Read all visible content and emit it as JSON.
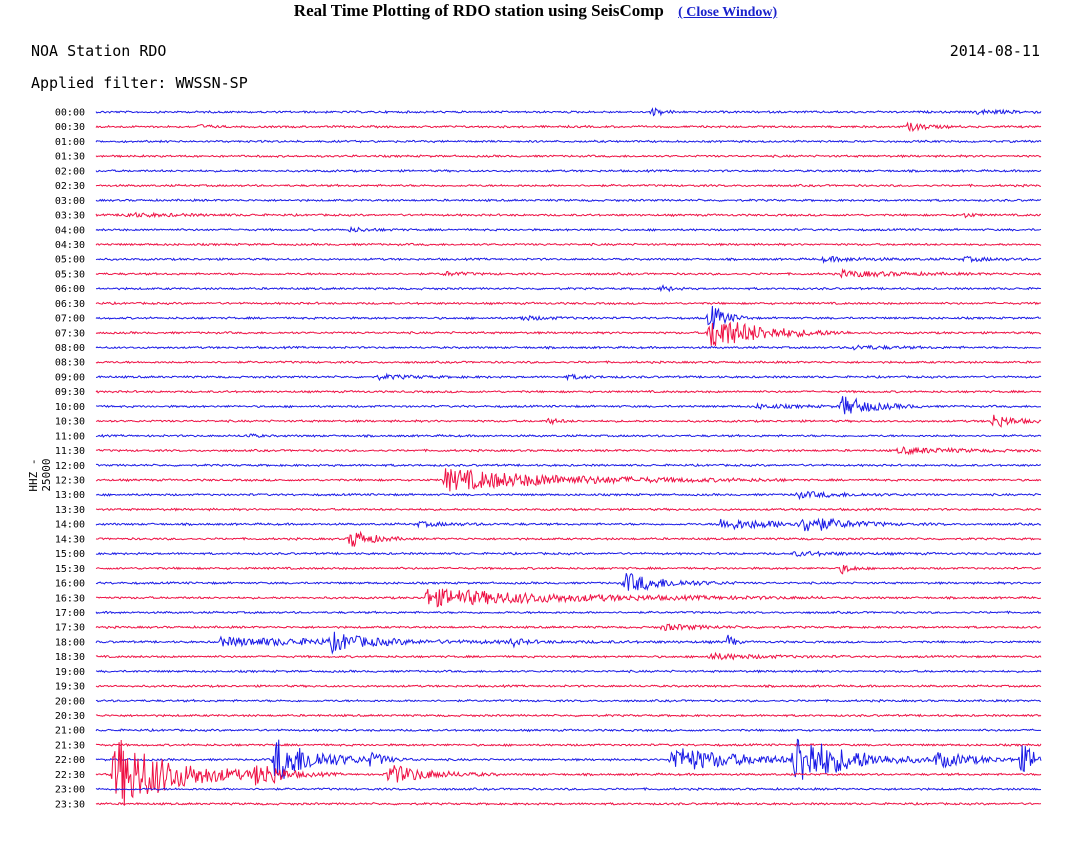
{
  "header": {
    "title": "Real Time Plotting of RDO station using SeisComp",
    "close_label": "( Close Window)"
  },
  "plot": {
    "station_label": "NOA Station RDO",
    "date": "2014-08-11",
    "filter_label": "Applied filter: WWSSN-SP",
    "channel_label": "HHZ - 25000",
    "colors": {
      "trace_a": "#1a1ae6",
      "trace_b": "#ee1144"
    },
    "rows": [
      {
        "time": "00:00",
        "events": [
          {
            "t": 0.59,
            "a": 4,
            "d": 0.01
          },
          {
            "t": 0.93,
            "a": 2,
            "d": 0.04
          }
        ]
      },
      {
        "time": "00:30",
        "events": [
          {
            "t": 0.11,
            "a": 2,
            "d": 0.01
          },
          {
            "t": 0.86,
            "a": 4,
            "d": 0.02
          }
        ]
      },
      {
        "time": "01:00",
        "events": []
      },
      {
        "time": "01:30",
        "events": []
      },
      {
        "time": "02:00",
        "events": []
      },
      {
        "time": "02:30",
        "events": []
      },
      {
        "time": "03:00",
        "events": []
      },
      {
        "time": "03:30",
        "events": [
          {
            "t": 0.03,
            "a": 2,
            "d": 0.05
          },
          {
            "t": 0.92,
            "a": 2,
            "d": 0.01
          }
        ]
      },
      {
        "time": "04:00",
        "events": [
          {
            "t": 0.27,
            "a": 2,
            "d": 0.02
          }
        ]
      },
      {
        "time": "04:30",
        "events": []
      },
      {
        "time": "05:00",
        "events": [
          {
            "t": 0.77,
            "a": 2,
            "d": 0.05
          },
          {
            "t": 0.92,
            "a": 2,
            "d": 0.03
          }
        ]
      },
      {
        "time": "05:30",
        "events": [
          {
            "t": 0.37,
            "a": 2,
            "d": 0.02
          },
          {
            "t": 0.79,
            "a": 3,
            "d": 0.06
          }
        ]
      },
      {
        "time": "06:00",
        "events": [
          {
            "t": 0.6,
            "a": 3,
            "d": 0.01
          }
        ]
      },
      {
        "time": "06:30",
        "events": []
      },
      {
        "time": "07:00",
        "events": [
          {
            "t": 0.65,
            "a": 14,
            "d": 0.015
          },
          {
            "t": 0.45,
            "a": 2,
            "d": 0.03
          }
        ]
      },
      {
        "time": "07:30",
        "events": [
          {
            "t": 0.65,
            "a": 18,
            "d": 0.05
          }
        ]
      },
      {
        "time": "08:00",
        "events": [
          {
            "t": 0.8,
            "a": 2,
            "d": 0.04
          }
        ]
      },
      {
        "time": "08:30",
        "events": []
      },
      {
        "time": "09:00",
        "events": [
          {
            "t": 0.3,
            "a": 2,
            "d": 0.04
          },
          {
            "t": 0.5,
            "a": 2,
            "d": 0.02
          }
        ]
      },
      {
        "time": "09:30",
        "events": []
      },
      {
        "time": "10:00",
        "events": [
          {
            "t": 0.79,
            "a": 10,
            "d": 0.03
          },
          {
            "t": 0.7,
            "a": 2,
            "d": 0.04
          }
        ]
      },
      {
        "time": "10:30",
        "events": [
          {
            "t": 0.48,
            "a": 3,
            "d": 0.01
          },
          {
            "t": 0.95,
            "a": 7,
            "d": 0.02
          }
        ]
      },
      {
        "time": "11:00",
        "events": [
          {
            "t": 0.16,
            "a": 2,
            "d": 0.01
          }
        ]
      },
      {
        "time": "11:30",
        "events": [
          {
            "t": 0.85,
            "a": 3,
            "d": 0.06
          }
        ]
      },
      {
        "time": "12:00",
        "events": []
      },
      {
        "time": "12:30",
        "events": [
          {
            "t": 0.37,
            "a": 11,
            "d": 0.12
          }
        ]
      },
      {
        "time": "13:00",
        "events": [
          {
            "t": 0.74,
            "a": 3,
            "d": 0.05
          }
        ]
      },
      {
        "time": "13:30",
        "events": []
      },
      {
        "time": "14:00",
        "events": [
          {
            "t": 0.66,
            "a": 5,
            "d": 0.08
          },
          {
            "t": 0.75,
            "a": 8,
            "d": 0.03
          },
          {
            "t": 0.34,
            "a": 2,
            "d": 0.04
          }
        ]
      },
      {
        "time": "14:30",
        "events": [
          {
            "t": 0.27,
            "a": 10,
            "d": 0.02
          }
        ]
      },
      {
        "time": "15:00",
        "events": [
          {
            "t": 0.74,
            "a": 2,
            "d": 0.05
          }
        ]
      },
      {
        "time": "15:30",
        "events": [
          {
            "t": 0.79,
            "a": 5,
            "d": 0.01
          }
        ]
      },
      {
        "time": "16:00",
        "events": [
          {
            "t": 0.56,
            "a": 10,
            "d": 0.04
          }
        ]
      },
      {
        "time": "16:30",
        "events": [
          {
            "t": 0.35,
            "a": 9,
            "d": 0.14
          }
        ]
      },
      {
        "time": "17:00",
        "events": []
      },
      {
        "time": "17:30",
        "events": [
          {
            "t": 0.6,
            "a": 3,
            "d": 0.04
          }
        ]
      },
      {
        "time": "18:00",
        "events": [
          {
            "t": 0.13,
            "a": 4,
            "d": 0.18
          },
          {
            "t": 0.25,
            "a": 8,
            "d": 0.03
          },
          {
            "t": 0.44,
            "a": 4,
            "d": 0.01
          },
          {
            "t": 0.67,
            "a": 9,
            "d": 0.005
          }
        ]
      },
      {
        "time": "18:30",
        "events": [
          {
            "t": 0.65,
            "a": 3,
            "d": 0.05
          }
        ]
      },
      {
        "time": "19:00",
        "events": []
      },
      {
        "time": "19:30",
        "events": []
      },
      {
        "time": "20:00",
        "events": []
      },
      {
        "time": "20:30",
        "events": []
      },
      {
        "time": "21:00",
        "events": []
      },
      {
        "time": "21:30",
        "events": []
      },
      {
        "time": "22:00",
        "events": [
          {
            "t": 0.19,
            "a": 24,
            "d": 0.04
          },
          {
            "t": 0.29,
            "a": 5,
            "d": 0.02
          },
          {
            "t": 0.61,
            "a": 13,
            "d": 0.07
          },
          {
            "t": 0.74,
            "a": 26,
            "d": 0.05
          },
          {
            "t": 0.89,
            "a": 8,
            "d": 0.04
          },
          {
            "t": 0.98,
            "a": 14,
            "d": 0.02
          }
        ]
      },
      {
        "time": "22:30",
        "events": [
          {
            "t": 0.02,
            "a": 38,
            "d": 0.06
          },
          {
            "t": 0.17,
            "a": 10,
            "d": 0.03
          },
          {
            "t": 0.31,
            "a": 10,
            "d": 0.04
          }
        ]
      },
      {
        "time": "23:00",
        "events": []
      },
      {
        "time": "23:30",
        "events": []
      }
    ]
  }
}
